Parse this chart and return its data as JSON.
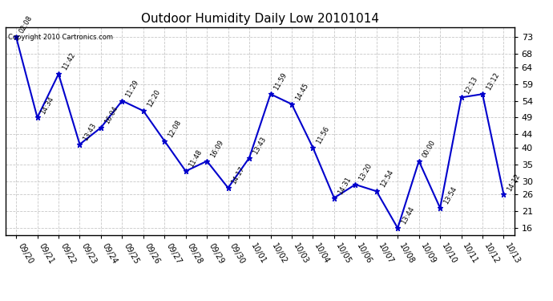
{
  "title": "Outdoor Humidity Daily Low 20101014",
  "copyright": "Copyright 2010 Cartronics.com",
  "x_labels": [
    "09/20",
    "09/21",
    "09/22",
    "09/23",
    "09/24",
    "09/25",
    "09/26",
    "09/27",
    "09/28",
    "09/29",
    "09/30",
    "10/01",
    "10/02",
    "10/03",
    "10/04",
    "10/05",
    "10/06",
    "10/07",
    "10/08",
    "10/09",
    "10/10",
    "10/11",
    "10/12",
    "10/13"
  ],
  "y_values": [
    73,
    49,
    62,
    41,
    46,
    54,
    51,
    42,
    33,
    36,
    28,
    37,
    56,
    53,
    40,
    25,
    29,
    27,
    16,
    36,
    22,
    55,
    56,
    26
  ],
  "point_labels": [
    "02:08",
    "14:34",
    "11:42",
    "13:43",
    "16:04",
    "11:29",
    "12:20",
    "12:08",
    "11:48",
    "16:09",
    "14:17",
    "13:43",
    "11:59",
    "14:45",
    "11:56",
    "14:31",
    "13:20",
    "12:54",
    "13:44",
    "00:00",
    "13:54",
    "12:13",
    "13:12",
    "14:12"
  ],
  "ylim_min": 14,
  "ylim_max": 76,
  "yticks": [
    16,
    21,
    26,
    30,
    35,
    40,
    44,
    49,
    54,
    59,
    64,
    68,
    73
  ],
  "line_color": "#0000cc",
  "marker_color": "#0000cc",
  "bg_color": "#ffffff",
  "grid_color": "#c8c8c8",
  "title_fontsize": 11
}
